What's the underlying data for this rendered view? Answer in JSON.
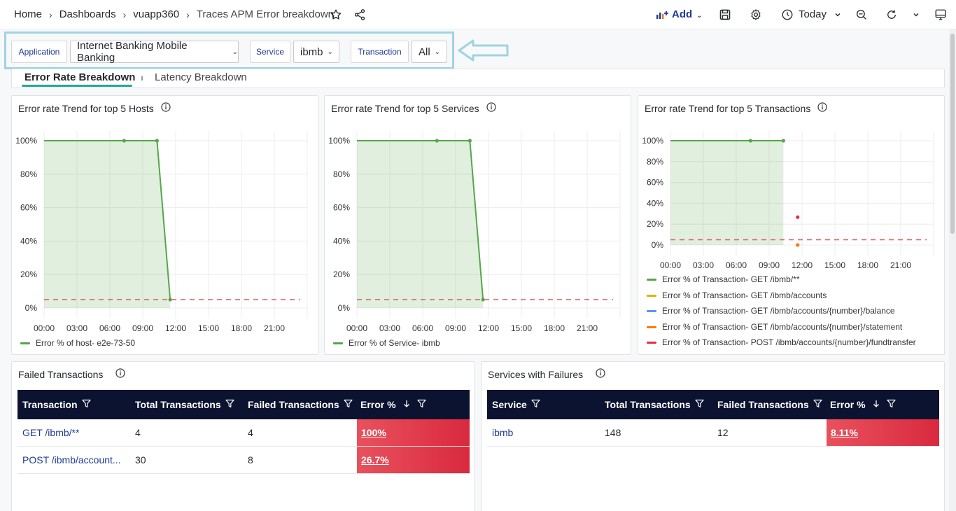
{
  "breadcrumb": {
    "items": [
      "Home",
      "Dashboards",
      "vuapp360",
      "Traces APM Error breakdown"
    ],
    "separator": "›"
  },
  "toolbar": {
    "add_label": "Add",
    "time_label": "Today",
    "icons": [
      "star-icon",
      "share-icon",
      "add-panel-icon",
      "save-icon",
      "settings-icon",
      "clock-icon",
      "zoom-out-icon",
      "refresh-icon",
      "tv-mode-icon"
    ]
  },
  "variables": {
    "application": {
      "label": "Application",
      "value": "Internet Banking Mobile Banking"
    },
    "service": {
      "label": "Service",
      "value": "ibmb"
    },
    "transaction": {
      "label": "Transaction",
      "value": "All"
    }
  },
  "tabs": [
    {
      "label": "Error Rate Breakdown",
      "active": true
    },
    {
      "label": "Latency Breakdown",
      "active": false
    }
  ],
  "colors": {
    "accent": "#22a699",
    "header_bg": "#0b1330",
    "series_green": "#56a64b",
    "threshold_red": "#e05a5a",
    "error_cell": "#d9293e",
    "link": "#1f3a93"
  },
  "panels": {
    "hosts": {
      "title": "Error rate Trend for top 5 Hosts",
      "legend": [
        {
          "label": "Error % of host- e2e-73-50",
          "color": "#56a64b"
        }
      ]
    },
    "services": {
      "title": "Error rate Trend for top 5 Services",
      "legend": [
        {
          "label": "Error % of Service- ibmb",
          "color": "#56a64b"
        }
      ]
    },
    "transactions": {
      "title": "Error rate Trend for top 5 Transactions",
      "legend": [
        {
          "label": "Error % of Transaction- GET /ibmb/**",
          "color": "#56a64b"
        },
        {
          "label": "Error % of Transaction- GET /ibmb/accounts",
          "color": "#e0b400"
        },
        {
          "label": "Error % of Transaction- GET /ibmb/accounts/{number}/balance",
          "color": "#5794f2"
        },
        {
          "label": "Error % of Transaction- GET /ibmb/accounts/{number}/statement",
          "color": "#ff780a"
        },
        {
          "label": "Error % of Transaction- POST /ibmb/accounts/{number}/fundtransfer",
          "color": "#e02f44"
        }
      ]
    }
  },
  "chart_data": [
    {
      "type": "area",
      "title": "Error rate Trend for top 5 Hosts",
      "x_ticks": [
        "00:00",
        "03:00",
        "06:00",
        "09:00",
        "12:00",
        "15:00",
        "18:00",
        "21:00"
      ],
      "y_ticks": [
        "0%",
        "20%",
        "40%",
        "60%",
        "80%",
        "100%"
      ],
      "ylim": [
        0,
        100
      ],
      "xlim_hours": [
        0,
        24
      ],
      "threshold": 5,
      "series": [
        {
          "name": "Error % of host- e2e-73-50",
          "color": "#56a64b",
          "points": [
            [
              0,
              100
            ],
            [
              7.3,
              100
            ],
            [
              10.3,
              100
            ],
            [
              11.5,
              5
            ]
          ]
        }
      ]
    },
    {
      "type": "area",
      "title": "Error rate Trend for top 5 Services",
      "x_ticks": [
        "00:00",
        "03:00",
        "06:00",
        "09:00",
        "12:00",
        "15:00",
        "18:00",
        "21:00"
      ],
      "y_ticks": [
        "0%",
        "20%",
        "40%",
        "60%",
        "80%",
        "100%"
      ],
      "ylim": [
        0,
        100
      ],
      "xlim_hours": [
        0,
        24
      ],
      "threshold": 5,
      "series": [
        {
          "name": "Error % of Service- ibmb",
          "color": "#56a64b",
          "points": [
            [
              0,
              100
            ],
            [
              7.3,
              100
            ],
            [
              10.3,
              100
            ],
            [
              11.5,
              5
            ]
          ]
        }
      ]
    },
    {
      "type": "area",
      "title": "Error rate Trend for top 5 Transactions",
      "x_ticks": [
        "00:00",
        "03:00",
        "06:00",
        "09:00",
        "12:00",
        "15:00",
        "18:00",
        "21:00"
      ],
      "y_ticks": [
        "0%",
        "20%",
        "40%",
        "60%",
        "80%",
        "100%"
      ],
      "ylim": [
        0,
        100
      ],
      "xlim_hours": [
        0,
        24
      ],
      "threshold": 5,
      "series": [
        {
          "name": "Error % of Transaction- GET /ibmb/**",
          "color": "#56a64b",
          "points": [
            [
              0,
              100
            ],
            [
              7.3,
              100
            ],
            [
              10.3,
              100
            ]
          ]
        },
        {
          "name": "Error % of Transaction- POST /ibmb/accounts/{number}/fundtransfer",
          "color": "#e02f44",
          "points": [
            [
              11.6,
              26.7
            ]
          ]
        },
        {
          "name": "Error % of Transaction- GET /ibmb/accounts/{number}/statement",
          "color": "#ff780a",
          "points": [
            [
              11.6,
              0
            ]
          ]
        }
      ]
    }
  ],
  "failed_transactions": {
    "title": "Failed Transactions",
    "columns": [
      "Transaction",
      "Total Transactions",
      "Failed Transactions",
      "Error %"
    ],
    "rows": [
      {
        "name": "GET /ibmb/**",
        "total": "4",
        "failed": "4",
        "error": "100%"
      },
      {
        "name": "POST /ibmb/account...",
        "total": "30",
        "failed": "8",
        "error": "26.7%"
      }
    ]
  },
  "services_failures": {
    "title": "Services with Failures",
    "columns": [
      "Service",
      "Total Transactions",
      "Failed Transactions",
      "Error %"
    ],
    "rows": [
      {
        "name": "ibmb",
        "total": "148",
        "failed": "12",
        "error": "8.11%"
      }
    ]
  }
}
